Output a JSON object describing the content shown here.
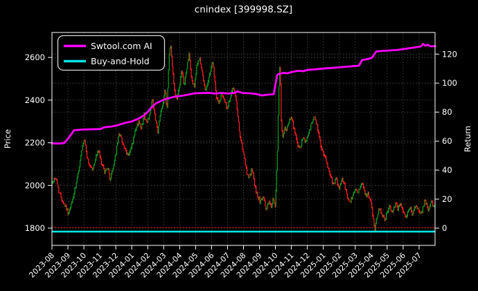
{
  "figure": {
    "background": "#000000",
    "text_color": "#ffffff",
    "spine_color": "#ffffff",
    "grid_color": "#585858"
  },
  "chart_data": {
    "type": "candlestick+line",
    "title": "cnindex [399998.SZ]",
    "x_axis": {
      "labels": [
        "2023-08",
        "2023-09",
        "2023-10",
        "2023-11",
        "2023-12",
        "2024-01",
        "2024-02",
        "2024-03",
        "2024-04",
        "2024-05",
        "2024-06",
        "2024-07",
        "2024-08",
        "2024-09",
        "2024-10",
        "2024-11",
        "2024-12",
        "2025-01",
        "2025-02",
        "2025-03",
        "2025-04",
        "2025-05",
        "2025-06",
        "2025-07"
      ],
      "months_span": 24,
      "tick_rotation_deg": 45
    },
    "left_axis": {
      "label": "Price",
      "ticks": [
        1800,
        2000,
        2200,
        2400,
        2600
      ],
      "range": [
        1719,
        2717
      ]
    },
    "right_axis": {
      "label": "Return",
      "ticks": [
        0,
        20,
        40,
        60,
        80,
        100,
        120
      ],
      "range": [
        -11.9,
        134.9
      ]
    },
    "legend": [
      {
        "label": "Swtool.com AI",
        "color": "#ff00ff"
      },
      {
        "label": "Buy-and-Hold",
        "color": "#00e5e5"
      }
    ],
    "grid": {
      "on": true,
      "dash": "1.6 2.6"
    },
    "series": {
      "price_candles": {
        "name": "cnindex daily price bars",
        "up_color": "#00a01e",
        "down_color": "#ff1e1e",
        "bars_per_month": 21,
        "anchors_month_price": [
          [
            0,
            2010
          ],
          [
            0.22,
            2040
          ],
          [
            0.43,
            1975
          ],
          [
            0.65,
            1930
          ],
          [
            0.87,
            1900
          ],
          [
            1.04,
            1865
          ],
          [
            1.26,
            1925
          ],
          [
            1.48,
            1990
          ],
          [
            1.69,
            2080
          ],
          [
            1.91,
            2180
          ],
          [
            2.04,
            2215
          ],
          [
            2.26,
            2105
          ],
          [
            2.43,
            2090
          ],
          [
            2.56,
            2070
          ],
          [
            2.73,
            2130
          ],
          [
            2.91,
            2165
          ],
          [
            3.08,
            2110
          ],
          [
            3.3,
            2060
          ],
          [
            3.47,
            2090
          ],
          [
            3.65,
            2025
          ],
          [
            3.82,
            2080
          ],
          [
            4.04,
            2170
          ],
          [
            4.21,
            2250
          ],
          [
            4.43,
            2200
          ],
          [
            4.64,
            2150
          ],
          [
            4.82,
            2145
          ],
          [
            4.99,
            2180
          ],
          [
            5.21,
            2250
          ],
          [
            5.43,
            2300
          ],
          [
            5.6,
            2270
          ],
          [
            5.77,
            2330
          ],
          [
            5.95,
            2290
          ],
          [
            6.12,
            2340
          ],
          [
            6.29,
            2400
          ],
          [
            6.47,
            2310
          ],
          [
            6.64,
            2250
          ],
          [
            6.81,
            2350
          ],
          [
            6.94,
            2380
          ],
          [
            7.07,
            2450
          ],
          [
            7.2,
            2360
          ],
          [
            7.33,
            2600
          ],
          [
            7.42,
            2670
          ],
          [
            7.55,
            2550
          ],
          [
            7.68,
            2450
          ],
          [
            7.81,
            2400
          ],
          [
            7.94,
            2450
          ],
          [
            8.12,
            2530
          ],
          [
            8.29,
            2470
          ],
          [
            8.46,
            2560
          ],
          [
            8.59,
            2615
          ],
          [
            8.72,
            2510
          ],
          [
            8.9,
            2460
          ],
          [
            9.07,
            2555
          ],
          [
            9.24,
            2600
          ],
          [
            9.42,
            2520
          ],
          [
            9.59,
            2450
          ],
          [
            9.77,
            2480
          ],
          [
            9.94,
            2545
          ],
          [
            10.07,
            2580
          ],
          [
            10.29,
            2420
          ],
          [
            10.46,
            2380
          ],
          [
            10.63,
            2440
          ],
          [
            10.81,
            2400
          ],
          [
            10.98,
            2350
          ],
          [
            11.15,
            2415
          ],
          [
            11.33,
            2455
          ],
          [
            11.5,
            2420
          ],
          [
            11.67,
            2300
          ],
          [
            11.85,
            2200
          ],
          [
            12.02,
            2140
          ],
          [
            12.2,
            2060
          ],
          [
            12.37,
            2040
          ],
          [
            12.54,
            2075
          ],
          [
            12.72,
            1990
          ],
          [
            12.89,
            1950
          ],
          [
            13.06,
            1920
          ],
          [
            13.24,
            1945
          ],
          [
            13.41,
            1890
          ],
          [
            13.58,
            1925
          ],
          [
            13.72,
            1900
          ],
          [
            13.85,
            1935
          ],
          [
            13.98,
            1895
          ],
          [
            14.11,
            2120
          ],
          [
            14.19,
            2400
          ],
          [
            14.28,
            2590
          ],
          [
            14.36,
            2310
          ],
          [
            14.45,
            2220
          ],
          [
            14.58,
            2280
          ],
          [
            14.71,
            2255
          ],
          [
            14.89,
            2320
          ],
          [
            15.06,
            2300
          ],
          [
            15.23,
            2240
          ],
          [
            15.41,
            2190
          ],
          [
            15.54,
            2165
          ],
          [
            15.71,
            2220
          ],
          [
            15.89,
            2200
          ],
          [
            16.06,
            2240
          ],
          [
            16.23,
            2280
          ],
          [
            16.41,
            2320
          ],
          [
            16.58,
            2290
          ],
          [
            16.75,
            2220
          ],
          [
            16.93,
            2160
          ],
          [
            17.1,
            2130
          ],
          [
            17.27,
            2090
          ],
          [
            17.45,
            2050
          ],
          [
            17.62,
            2000
          ],
          [
            17.8,
            2030
          ],
          [
            17.97,
            1990
          ],
          [
            18.14,
            2030
          ],
          [
            18.32,
            2010
          ],
          [
            18.49,
            1950
          ],
          [
            18.66,
            1920
          ],
          [
            18.84,
            1945
          ],
          [
            19.01,
            1990
          ],
          [
            19.18,
            1960
          ],
          [
            19.31,
            2000
          ],
          [
            19.44,
            2010
          ],
          [
            19.57,
            1970
          ],
          [
            19.7,
            1945
          ],
          [
            19.83,
            1960
          ],
          [
            19.96,
            1930
          ],
          [
            20.1,
            1855
          ],
          [
            20.23,
            1795
          ],
          [
            20.36,
            1855
          ],
          [
            20.49,
            1900
          ],
          [
            20.62,
            1880
          ],
          [
            20.75,
            1855
          ],
          [
            20.88,
            1840
          ],
          [
            21.01,
            1880
          ],
          [
            21.14,
            1905
          ],
          [
            21.27,
            1870
          ],
          [
            21.4,
            1890
          ],
          [
            21.53,
            1920
          ],
          [
            21.66,
            1890
          ],
          [
            21.79,
            1915
          ],
          [
            21.92,
            1905
          ],
          [
            22.05,
            1870
          ],
          [
            22.18,
            1855
          ],
          [
            22.31,
            1880
          ],
          [
            22.44,
            1900
          ],
          [
            22.57,
            1870
          ],
          [
            22.7,
            1890
          ],
          [
            22.83,
            1915
          ],
          [
            22.96,
            1880
          ],
          [
            23.09,
            1860
          ],
          [
            23.22,
            1890
          ],
          [
            23.35,
            1930
          ],
          [
            23.48,
            1910
          ],
          [
            23.61,
            1880
          ],
          [
            23.74,
            1920
          ],
          [
            23.87,
            1910
          ]
        ]
      },
      "ai_return": {
        "name": "Swtool.com AI",
        "color": "#ff00ff",
        "axis": "right",
        "points_month_return": [
          [
            0,
            58.5
          ],
          [
            0.43,
            58.3
          ],
          [
            0.78,
            58.8
          ],
          [
            0.95,
            61
          ],
          [
            1.13,
            63.5
          ],
          [
            1.39,
            67.5
          ],
          [
            1.95,
            68
          ],
          [
            3.04,
            68.3
          ],
          [
            3.26,
            69.5
          ],
          [
            3.69,
            70
          ],
          [
            4.12,
            71
          ],
          [
            4.56,
            72.5
          ],
          [
            4.99,
            73.5
          ],
          [
            5.43,
            75.5
          ],
          [
            5.73,
            77.5
          ],
          [
            5.99,
            80
          ],
          [
            6.21,
            83
          ],
          [
            6.51,
            86
          ],
          [
            6.99,
            88.5
          ],
          [
            7.6,
            90.5
          ],
          [
            8.25,
            91.5
          ],
          [
            8.98,
            93
          ],
          [
            9.77,
            93.3
          ],
          [
            10.2,
            92.8
          ],
          [
            10.63,
            93.2
          ],
          [
            11.07,
            92.8
          ],
          [
            11.41,
            93.2
          ],
          [
            11.63,
            94.3
          ],
          [
            11.94,
            93.2
          ],
          [
            12.37,
            93
          ],
          [
            12.8,
            92.5
          ],
          [
            13.15,
            91.5
          ],
          [
            13.5,
            92
          ],
          [
            13.89,
            92.3
          ],
          [
            14.11,
            105.5
          ],
          [
            14.24,
            106.5
          ],
          [
            14.54,
            107
          ],
          [
            14.76,
            106.8
          ],
          [
            14.97,
            107.5
          ],
          [
            15.41,
            108.5
          ],
          [
            15.76,
            108.2
          ],
          [
            15.97,
            109
          ],
          [
            16.49,
            109.5
          ],
          [
            16.97,
            110
          ],
          [
            17.58,
            110.5
          ],
          [
            18.45,
            111.3
          ],
          [
            19.23,
            112
          ],
          [
            19.44,
            116
          ],
          [
            19.75,
            116.5
          ],
          [
            20.05,
            117.5
          ],
          [
            20.31,
            121.8
          ],
          [
            20.83,
            122.3
          ],
          [
            21.61,
            122.8
          ],
          [
            22.35,
            124
          ],
          [
            23.09,
            125.2
          ],
          [
            23.26,
            127
          ],
          [
            23.39,
            125.8
          ],
          [
            23.52,
            126.5
          ],
          [
            23.74,
            125.3
          ],
          [
            24,
            125.5
          ]
        ]
      },
      "buy_hold_return": {
        "name": "Buy-and-Hold",
        "color": "#00e5e5",
        "axis": "right",
        "value": -2.4
      },
      "zero_line": {
        "color": "#8b0000",
        "value": 0.5
      }
    }
  }
}
